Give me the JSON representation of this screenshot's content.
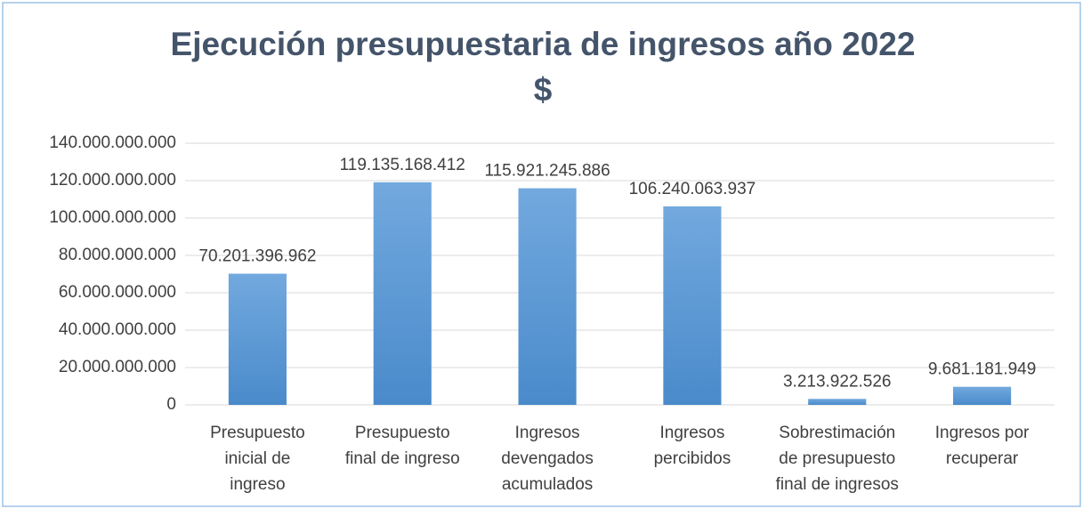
{
  "chart_data": {
    "type": "bar",
    "title": [
      "Ejecución presupuestaria de ingresos año 2022",
      "$"
    ],
    "categories": [
      [
        "Presupuesto",
        "inicial de",
        "ingreso"
      ],
      [
        "Presupuesto",
        "final de ingreso"
      ],
      [
        "Ingresos",
        "devengados",
        "acumulados"
      ],
      [
        "Ingresos",
        "percibidos"
      ],
      [
        "Sobrestimación",
        "de presupuesto",
        "final de ingresos"
      ],
      [
        "Ingresos por",
        "recuperar"
      ]
    ],
    "values": [
      70201396962,
      119135168412,
      115921245886,
      106240063937,
      3213922526,
      9681181949
    ],
    "value_labels": [
      "70.201.396.962",
      "119.135.168.412",
      "115.921.245.886",
      "106.240.063.937",
      "3.213.922.526",
      "9.681.181.949"
    ],
    "color": "#5b9bd5",
    "ylim": [
      0,
      140000000000
    ],
    "yticks": [
      0,
      {
        "value": 20000000000,
        "label": "20.000.000.000"
      },
      {
        "value": 40000000000,
        "label": "40.000.000.000"
      },
      {
        "value": 60000000000,
        "label": "60.000.000.000"
      },
      {
        "value": 80000000000,
        "label": "80.000.000.000"
      },
      {
        "value": 100000000000,
        "label": "100.000.000.000"
      },
      {
        "value": 120000000000,
        "label": "120.000.000.000"
      },
      {
        "value": 140000000000,
        "label": "140.000.000.000"
      }
    ],
    "grid": true
  }
}
